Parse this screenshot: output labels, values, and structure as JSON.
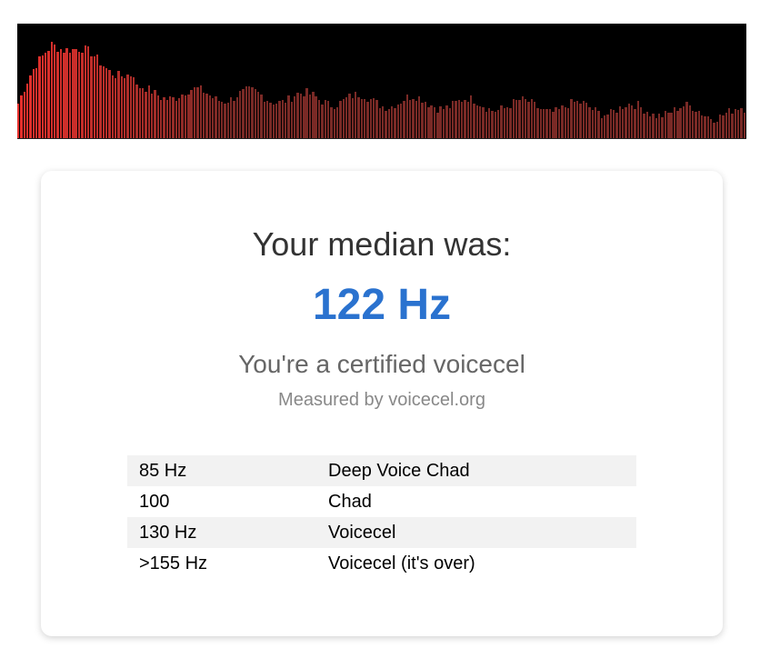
{
  "visualizer": {
    "colors": {
      "bar_start": "#e8302c",
      "bar_end": "#7a2a26",
      "background": "#000000"
    }
  },
  "result": {
    "heading": "Your median was:",
    "value": "122 Hz",
    "verdict": "You're a certified voicecel",
    "credit": "Measured by voicecel.org",
    "accent_color": "#2a72cf"
  },
  "scale": {
    "rows": [
      {
        "freq": "85 Hz",
        "label": "Deep Voice Chad"
      },
      {
        "freq": "100",
        "label": "Chad"
      },
      {
        "freq": "130 Hz",
        "label": "Voicecel"
      },
      {
        "freq": ">155 Hz",
        "label": "Voicecel (it's over)"
      }
    ]
  }
}
